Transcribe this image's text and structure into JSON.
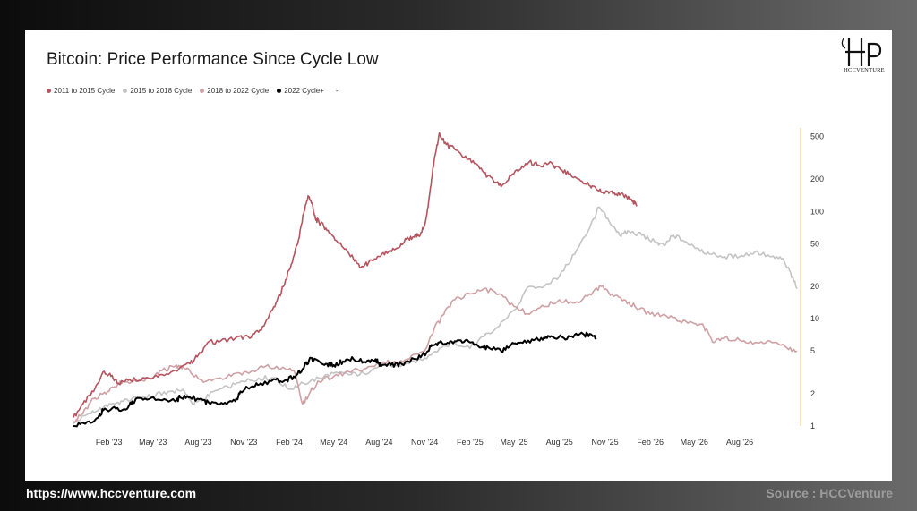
{
  "chart_data": {
    "type": "line",
    "title": "Bitcoin: Price Performance Since Cycle Low",
    "y_scale": "log",
    "ylim": [
      1,
      600
    ],
    "xlim": [
      "2022-11-21",
      "2026-11-25"
    ],
    "x_tick_labels": [
      "Feb '23",
      "May '23",
      "Aug '23",
      "Nov '23",
      "Feb '24",
      "May '24",
      "Aug '24",
      "Nov '24",
      "Feb '25",
      "May '25",
      "Aug '25",
      "Nov '25",
      "Feb '26",
      "May '26",
      "Aug '26"
    ],
    "x_tick_dates": [
      "2023-02-01",
      "2023-05-01",
      "2023-08-01",
      "2023-11-01",
      "2024-02-01",
      "2024-05-01",
      "2024-08-01",
      "2024-11-01",
      "2025-02-01",
      "2025-05-01",
      "2025-08-01",
      "2025-11-01",
      "2026-02-01",
      "2026-05-01",
      "2026-08-01"
    ],
    "y_ticks": [
      1,
      2,
      5,
      10,
      20,
      50,
      100,
      200,
      500
    ],
    "y_tick_labels": [
      "1",
      "2",
      "5",
      "10",
      "20",
      "50",
      "100",
      "200",
      "500"
    ],
    "grid": false,
    "legend_position": "top-left",
    "legend_extra": "-",
    "series": [
      {
        "name": "2011 to 2015 Cycle",
        "color": "#b5545f",
        "x": [
          "2022-11-21",
          "2022-12-10",
          "2023-01-01",
          "2023-01-20",
          "2023-02-05",
          "2023-02-20",
          "2023-03-15",
          "2023-04-15",
          "2023-05-15",
          "2023-06-15",
          "2023-07-15",
          "2023-08-01",
          "2023-08-20",
          "2023-09-15",
          "2023-10-15",
          "2023-11-10",
          "2023-12-01",
          "2023-12-20",
          "2024-01-05",
          "2024-01-20",
          "2024-02-05",
          "2024-02-20",
          "2024-03-01",
          "2024-03-10",
          "2024-03-18",
          "2024-03-25",
          "2024-04-01",
          "2024-04-15",
          "2024-05-01",
          "2024-05-20",
          "2024-06-10",
          "2024-06-25",
          "2024-07-10",
          "2024-08-01",
          "2024-08-20",
          "2024-09-10",
          "2024-09-25",
          "2024-10-10",
          "2024-10-20",
          "2024-10-31",
          "2024-11-08",
          "2024-11-15",
          "2024-11-22",
          "2024-12-01",
          "2024-12-15",
          "2025-01-01",
          "2025-01-20",
          "2025-02-10",
          "2025-03-01",
          "2025-03-20",
          "2025-04-05",
          "2025-04-25",
          "2025-05-15",
          "2025-06-01",
          "2025-06-20",
          "2025-07-10",
          "2025-08-01",
          "2025-08-20",
          "2025-09-10",
          "2025-09-30",
          "2025-10-15",
          "2025-11-01",
          "2025-11-15",
          "2025-12-01",
          "2025-12-15",
          "2025-12-28",
          "2026-01-05"
        ],
        "values": [
          1.2,
          1.6,
          2.1,
          3.2,
          2.9,
          2.5,
          2.7,
          2.8,
          3.0,
          3.3,
          3.8,
          4.6,
          6.0,
          6.2,
          6.6,
          6.8,
          7.5,
          10,
          14,
          20,
          32,
          55,
          95,
          140,
          120,
          85,
          80,
          70,
          58,
          46,
          36,
          30,
          33,
          38,
          42,
          46,
          55,
          58,
          60,
          72,
          110,
          200,
          330,
          540,
          420,
          380,
          320,
          280,
          230,
          195,
          170,
          215,
          250,
          290,
          270,
          280,
          255,
          220,
          200,
          175,
          160,
          148,
          155,
          142,
          138,
          125,
          112
        ]
      },
      {
        "name": "2015 to 2018 Cycle",
        "color": "#c4c4c4",
        "x": [
          "2022-11-21",
          "2022-12-15",
          "2023-01-10",
          "2023-02-05",
          "2023-03-01",
          "2023-04-01",
          "2023-05-01",
          "2023-06-01",
          "2023-07-01",
          "2023-07-20",
          "2023-08-10",
          "2023-09-01",
          "2023-10-01",
          "2023-11-01",
          "2023-12-01",
          "2024-01-01",
          "2024-02-01",
          "2024-03-01",
          "2024-04-01",
          "2024-05-01",
          "2024-06-01",
          "2024-07-01",
          "2024-08-01",
          "2024-09-01",
          "2024-10-01",
          "2024-11-01",
          "2024-12-01",
          "2025-01-01",
          "2025-02-01",
          "2025-03-01",
          "2025-04-01",
          "2025-05-01",
          "2025-06-01",
          "2025-07-01",
          "2025-08-01",
          "2025-09-01",
          "2025-10-01",
          "2025-10-20",
          "2025-11-10",
          "2025-12-01",
          "2025-12-20",
          "2026-01-15",
          "2026-02-10",
          "2026-03-01",
          "2026-03-20",
          "2026-04-15",
          "2026-05-10",
          "2026-06-01",
          "2026-07-01",
          "2026-08-01",
          "2026-09-01",
          "2026-10-01",
          "2026-10-25",
          "2026-11-10",
          "2026-11-25"
        ],
        "values": [
          1.05,
          1.25,
          1.4,
          1.6,
          1.7,
          1.85,
          1.9,
          2.1,
          2.2,
          1.6,
          1.75,
          2.1,
          2.3,
          2.6,
          2.8,
          2.8,
          2.2,
          2.5,
          2.8,
          3.1,
          3.0,
          3.1,
          3.6,
          3.6,
          3.8,
          4.3,
          5.3,
          6.0,
          5.3,
          6.8,
          8.5,
          12,
          20,
          20,
          25,
          40,
          70,
          110,
          80,
          60,
          65,
          60,
          52,
          48,
          60,
          52,
          45,
          40,
          38,
          38,
          42,
          38,
          36,
          28,
          19
        ]
      },
      {
        "name": "2018 to 2022 Cycle",
        "color": "#cfa0a4",
        "x": [
          "2022-11-21",
          "2022-12-10",
          "2023-01-01",
          "2023-01-20",
          "2023-02-10",
          "2023-03-01",
          "2023-04-01",
          "2023-05-01",
          "2023-05-20",
          "2023-06-15",
          "2023-07-01",
          "2023-07-20",
          "2023-08-15",
          "2023-09-15",
          "2023-10-15",
          "2023-11-15",
          "2023-12-15",
          "2024-01-15",
          "2024-02-10",
          "2024-02-28",
          "2024-03-15",
          "2024-04-01",
          "2024-05-01",
          "2024-06-01",
          "2024-07-01",
          "2024-08-01",
          "2024-09-01",
          "2024-10-01",
          "2024-11-01",
          "2024-11-20",
          "2024-12-10",
          "2025-01-01",
          "2025-02-01",
          "2025-03-01",
          "2025-04-01",
          "2025-05-01",
          "2025-06-01",
          "2025-07-01",
          "2025-08-01",
          "2025-09-01",
          "2025-10-01",
          "2025-10-25",
          "2025-11-15",
          "2025-12-10",
          "2026-01-01",
          "2026-02-01",
          "2026-03-01",
          "2026-04-01",
          "2026-05-01",
          "2026-05-20",
          "2026-06-10",
          "2026-07-01",
          "2026-08-01",
          "2026-09-01",
          "2026-10-01",
          "2026-11-01",
          "2026-11-25"
        ],
        "values": [
          1.1,
          1.3,
          1.8,
          2.0,
          2.3,
          2.6,
          2.6,
          2.8,
          3.3,
          3.6,
          3.6,
          3.0,
          2.6,
          2.8,
          3.1,
          3.2,
          3.6,
          3.4,
          3.3,
          1.6,
          2.1,
          2.6,
          2.9,
          3.2,
          3.4,
          3.8,
          4.0,
          4.2,
          5.0,
          8.0,
          11,
          15,
          17,
          19,
          17,
          13,
          11,
          13,
          15,
          14,
          17,
          20,
          17,
          15,
          13,
          11,
          11,
          9.5,
          9.0,
          8.5,
          6.0,
          6.6,
          6.3,
          6.0,
          6.2,
          5.5,
          5.0
        ]
      },
      {
        "name": "2022 Cycle+",
        "color": "#000000",
        "x": [
          "2022-11-21",
          "2022-12-15",
          "2023-01-10",
          "2023-01-20",
          "2023-02-15",
          "2023-03-10",
          "2023-03-20",
          "2023-04-15",
          "2023-05-15",
          "2023-06-15",
          "2023-06-25",
          "2023-07-15",
          "2023-08-10",
          "2023-08-25",
          "2023-09-20",
          "2023-10-15",
          "2023-10-25",
          "2023-11-15",
          "2023-12-05",
          "2024-01-05",
          "2024-01-20",
          "2024-02-10",
          "2024-02-28",
          "2024-03-12",
          "2024-03-25",
          "2024-04-15",
          "2024-05-01",
          "2024-05-20",
          "2024-06-10",
          "2024-07-05",
          "2024-07-25",
          "2024-08-05",
          "2024-08-25",
          "2024-09-15",
          "2024-10-15",
          "2024-11-05",
          "2024-11-15",
          "2024-12-01",
          "2024-12-20",
          "2025-01-10",
          "2025-02-01",
          "2025-02-20",
          "2025-03-10",
          "2025-04-05",
          "2025-04-25",
          "2025-05-15",
          "2025-06-10",
          "2025-07-01",
          "2025-07-15",
          "2025-08-10",
          "2025-09-01",
          "2025-09-20",
          "2025-10-06",
          "2025-10-15"
        ],
        "values": [
          1.0,
          1.05,
          1.2,
          1.4,
          1.45,
          1.45,
          1.7,
          1.8,
          1.75,
          1.7,
          1.85,
          1.85,
          1.75,
          1.6,
          1.6,
          1.7,
          2.1,
          2.3,
          2.5,
          2.7,
          2.6,
          2.9,
          3.4,
          4.1,
          4.2,
          3.8,
          3.7,
          4.0,
          4.2,
          3.9,
          4.2,
          3.6,
          3.7,
          3.8,
          4.2,
          4.8,
          5.7,
          6.0,
          5.9,
          6.3,
          6.0,
          5.4,
          5.4,
          5.0,
          5.7,
          6.0,
          6.3,
          6.7,
          6.9,
          6.6,
          7.1,
          7.1,
          7.0,
          6.6
        ]
      }
    ]
  },
  "logo": {
    "text": "HCCVENTURE"
  },
  "footer": {
    "url": "https://www.hccventure.com",
    "source": "Source : HCCVenture"
  }
}
